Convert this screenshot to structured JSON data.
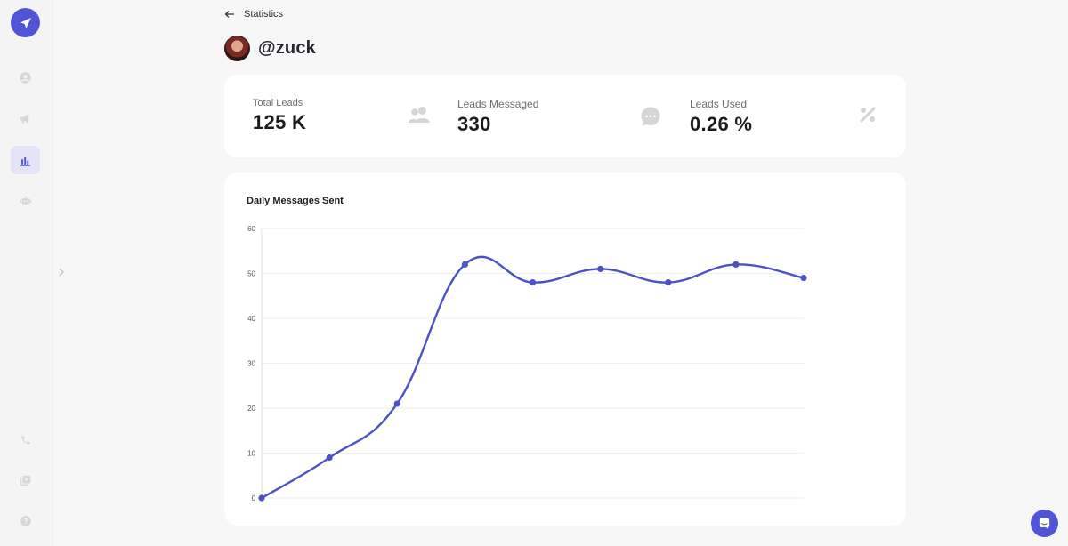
{
  "header": {
    "breadcrumb": "Statistics",
    "handle": "@zuck"
  },
  "sidebar": {
    "items": [
      {
        "icon": "user-icon"
      },
      {
        "icon": "megaphone-icon"
      },
      {
        "icon": "bar-chart-icon",
        "active": true
      },
      {
        "icon": "robot-icon"
      },
      {
        "icon": "phone-icon"
      },
      {
        "icon": "media-icon"
      },
      {
        "icon": "help-icon"
      }
    ]
  },
  "stats": [
    {
      "label": "Total Leads",
      "value": "125 K",
      "icon": "users-icon"
    },
    {
      "label": "Leads Messaged",
      "value": "330",
      "icon": "chat-bubble-icon"
    },
    {
      "label": "Leads Used",
      "value": "0.26 %",
      "icon": "percent-icon"
    }
  ],
  "colors": {
    "accent": "#4f55d6",
    "line": "#4b52c5",
    "muted_icon": "#d5d5d8"
  },
  "chart_data": {
    "type": "line",
    "title": "Daily Messages Sent",
    "xlabel": "",
    "ylabel": "",
    "ylim": [
      0,
      60
    ],
    "y_ticks": [
      0,
      10,
      20,
      30,
      40,
      50,
      60
    ],
    "grid": true,
    "smooth": true,
    "series": [
      {
        "values": [
          0,
          9,
          21,
          52,
          48,
          51,
          48,
          52,
          49
        ]
      }
    ]
  }
}
